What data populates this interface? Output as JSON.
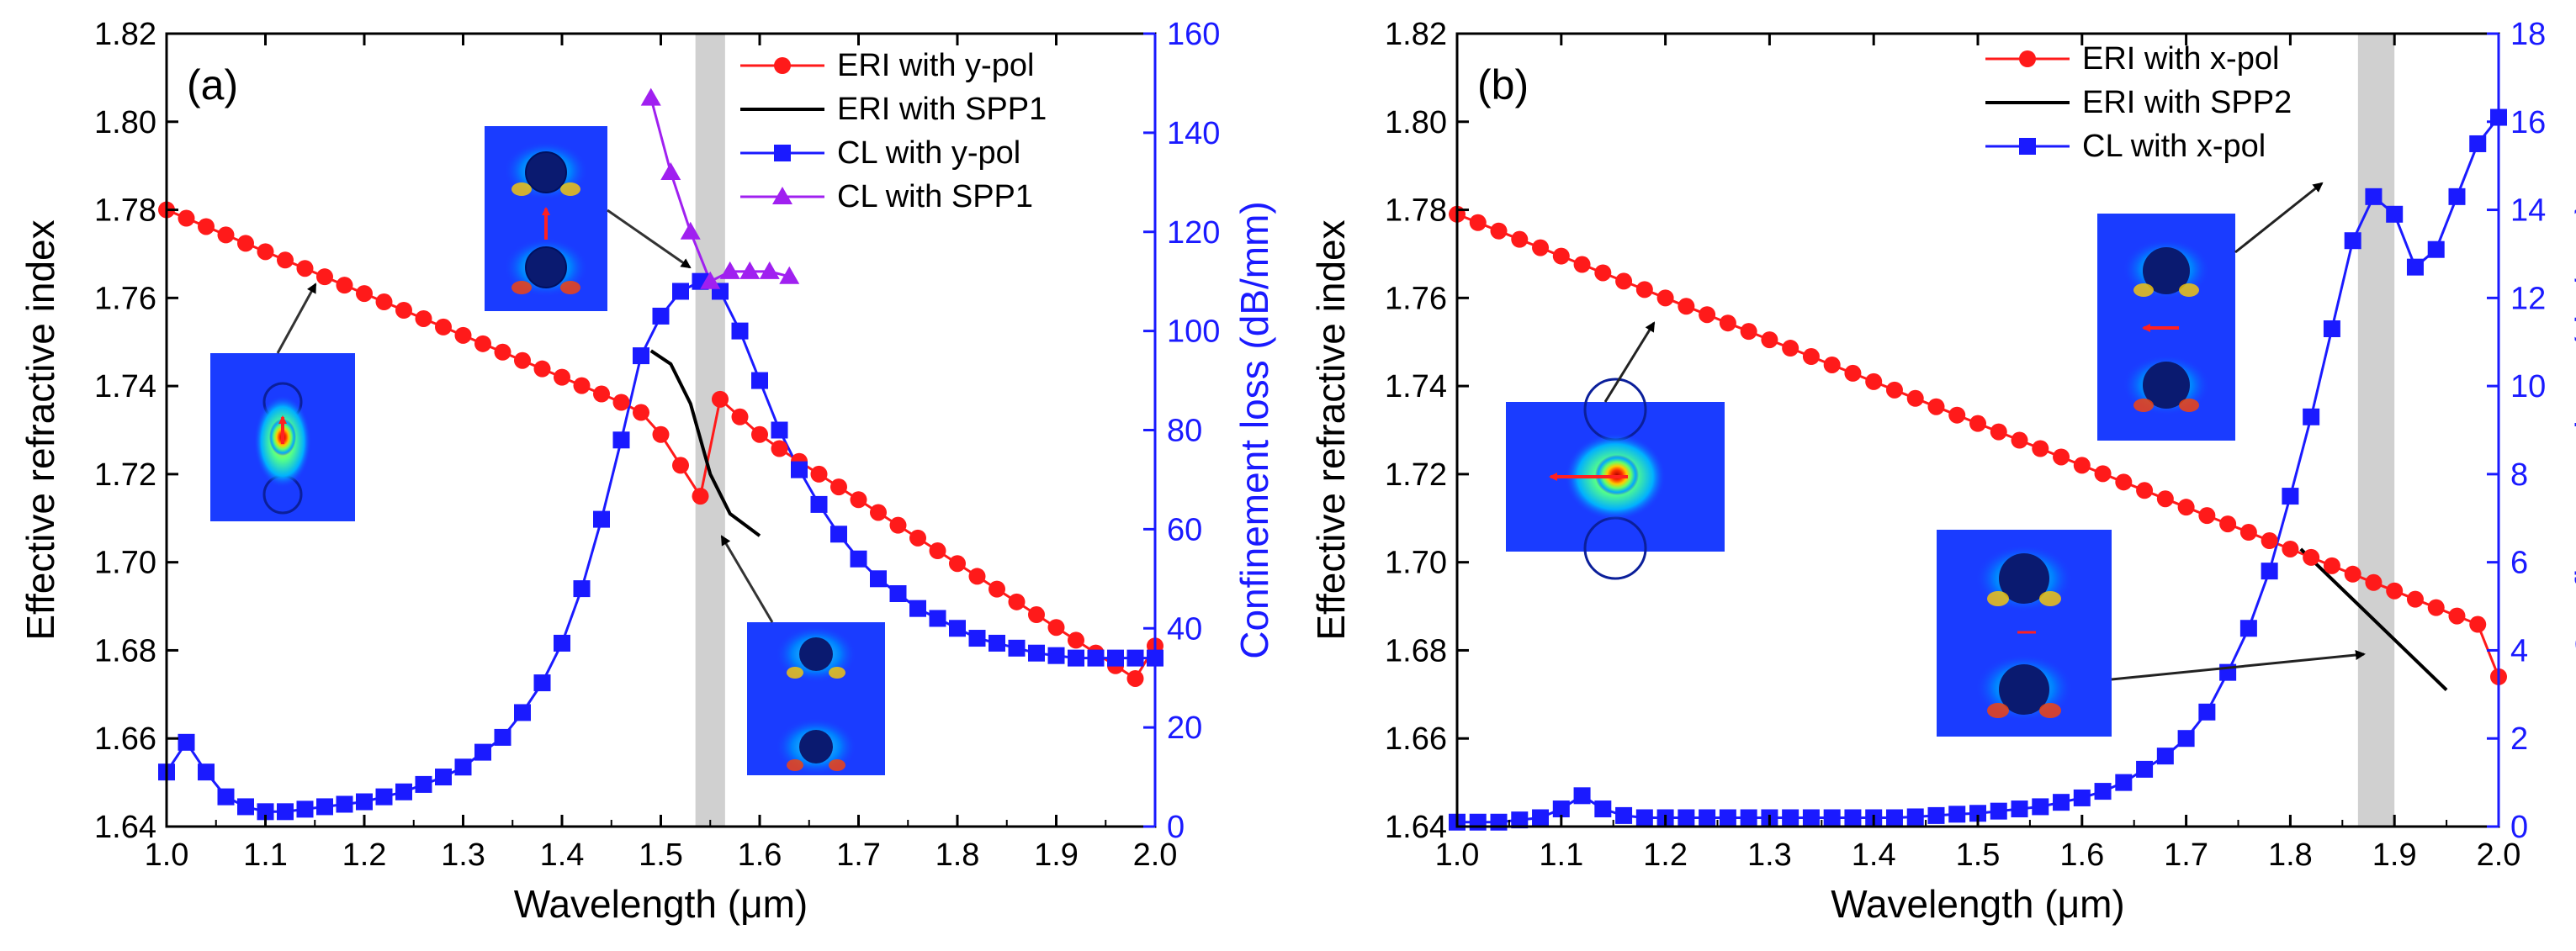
{
  "chart_data": [
    {
      "type": "line",
      "panel_label": "(a)",
      "xlabel": "Wavelength (μm)",
      "ylabel_left": "Effective refractive index",
      "ylabel_right": "Confinement loss (dB/mm)",
      "xlim": [
        1.0,
        2.0
      ],
      "ylim_left": [
        1.64,
        1.82
      ],
      "ylim_right": [
        0,
        160
      ],
      "x_ticks": [
        "1.0",
        "1.1",
        "1.2",
        "1.3",
        "1.4",
        "1.5",
        "1.6",
        "1.7",
        "1.8",
        "1.9",
        "2.0"
      ],
      "y_left_ticks": [
        "1.64",
        "1.66",
        "1.68",
        "1.70",
        "1.72",
        "1.74",
        "1.76",
        "1.78",
        "1.80",
        "1.82"
      ],
      "y_right_ticks": [
        "0",
        "20",
        "40",
        "60",
        "80",
        "100",
        "120",
        "140",
        "160"
      ],
      "highlight_band": [
        1.535,
        1.565
      ],
      "legend": [
        "ERI with y-pol",
        "ERI with SPP1",
        "CL with y-pol",
        "CL with SPP1"
      ],
      "series": [
        {
          "name": "ERI with y-pol",
          "axis": "left",
          "color": "#ff1a1a",
          "marker": "circle",
          "x": [
            1.0,
            1.02,
            1.04,
            1.06,
            1.08,
            1.1,
            1.12,
            1.14,
            1.16,
            1.18,
            1.2,
            1.22,
            1.24,
            1.26,
            1.28,
            1.3,
            1.32,
            1.34,
            1.36,
            1.38,
            1.4,
            1.42,
            1.44,
            1.46,
            1.48,
            1.5,
            1.52,
            1.54,
            1.56,
            1.58,
            1.6,
            1.62,
            1.64,
            1.66,
            1.68,
            1.7,
            1.72,
            1.74,
            1.76,
            1.78,
            1.8,
            1.82,
            1.84,
            1.86,
            1.88,
            1.9,
            1.92,
            1.94,
            1.96,
            1.98,
            2.0
          ],
          "y": [
            1.78,
            1.7781,
            1.7762,
            1.7743,
            1.7724,
            1.7705,
            1.7686,
            1.7667,
            1.7648,
            1.7629,
            1.761,
            1.7591,
            1.7572,
            1.7553,
            1.7534,
            1.7515,
            1.7496,
            1.7477,
            1.7458,
            1.7439,
            1.742,
            1.7401,
            1.7382,
            1.7363,
            1.734,
            1.729,
            1.722,
            1.715,
            1.737,
            1.733,
            1.729,
            1.7258,
            1.7229,
            1.72,
            1.7171,
            1.7142,
            1.7113,
            1.7084,
            1.7055,
            1.7026,
            1.6997,
            1.6968,
            1.6939,
            1.691,
            1.6881,
            1.6852,
            1.6823,
            1.6794,
            1.6765,
            1.6736,
            1.681
          ]
        },
        {
          "name": "ERI with SPP1",
          "axis": "left",
          "color": "#000000",
          "marker": "none",
          "x": [
            1.49,
            1.51,
            1.53,
            1.55,
            1.57,
            1.6
          ],
          "y": [
            1.748,
            1.745,
            1.736,
            1.72,
            1.711,
            1.706
          ]
        },
        {
          "name": "CL with y-pol",
          "axis": "right",
          "color": "#1a1aff",
          "marker": "square",
          "x": [
            1.0,
            1.02,
            1.04,
            1.06,
            1.08,
            1.1,
            1.12,
            1.14,
            1.16,
            1.18,
            1.2,
            1.22,
            1.24,
            1.26,
            1.28,
            1.3,
            1.32,
            1.34,
            1.36,
            1.38,
            1.4,
            1.42,
            1.44,
            1.46,
            1.48,
            1.5,
            1.52,
            1.54,
            1.56,
            1.58,
            1.6,
            1.62,
            1.64,
            1.66,
            1.68,
            1.7,
            1.72,
            1.74,
            1.76,
            1.78,
            1.8,
            1.82,
            1.84,
            1.86,
            1.88,
            1.9,
            1.92,
            1.94,
            1.96,
            1.98,
            2.0
          ],
          "y": [
            11,
            17,
            11,
            6,
            4,
            3,
            3,
            3.5,
            4,
            4.5,
            5,
            6,
            7,
            8.5,
            10,
            12,
            15,
            18,
            23,
            29,
            37,
            48,
            62,
            78,
            95,
            103,
            108,
            110,
            108,
            100,
            90,
            80,
            72,
            65,
            59,
            54,
            50,
            47,
            44,
            42,
            40,
            38,
            37,
            36,
            35,
            34.5,
            34,
            34,
            34,
            34,
            34
          ]
        },
        {
          "name": "CL with SPP1",
          "axis": "right",
          "color": "#a020f0",
          "marker": "triangle",
          "x": [
            1.49,
            1.51,
            1.53,
            1.55,
            1.57,
            1.59,
            1.61,
            1.63
          ],
          "y": [
            147,
            132,
            120,
            110,
            112,
            112,
            112,
            111
          ]
        }
      ],
      "annotations": [
        "fundamental y-pol mode field",
        "SPP1 mode field (coupling)",
        "SPP1 mode field"
      ]
    },
    {
      "type": "line",
      "panel_label": "(b)",
      "xlabel": "Wavelength (μm)",
      "ylabel_left": "Effective refractive index",
      "ylabel_right": "Confinement loss (dB/mm)",
      "xlim": [
        1.0,
        2.0
      ],
      "ylim_left": [
        1.64,
        1.82
      ],
      "ylim_right": [
        0,
        18
      ],
      "x_ticks": [
        "1.0",
        "1.1",
        "1.2",
        "1.3",
        "1.4",
        "1.5",
        "1.6",
        "1.7",
        "1.8",
        "1.9",
        "2.0"
      ],
      "y_left_ticks": [
        "1.64",
        "1.66",
        "1.68",
        "1.70",
        "1.72",
        "1.74",
        "1.76",
        "1.78",
        "1.80",
        "1.82"
      ],
      "y_right_ticks": [
        "0",
        "2",
        "4",
        "6",
        "8",
        "10",
        "12",
        "14",
        "16",
        "18"
      ],
      "highlight_band": [
        1.865,
        1.9
      ],
      "legend": [
        "ERI with x-pol",
        "ERI with SPP2",
        "CL with x-pol"
      ],
      "series": [
        {
          "name": "ERI with x-pol",
          "axis": "left",
          "color": "#ff1a1a",
          "marker": "circle",
          "x": [
            1.0,
            1.02,
            1.04,
            1.06,
            1.08,
            1.1,
            1.12,
            1.14,
            1.16,
            1.18,
            1.2,
            1.22,
            1.24,
            1.26,
            1.28,
            1.3,
            1.32,
            1.34,
            1.36,
            1.38,
            1.4,
            1.42,
            1.44,
            1.46,
            1.48,
            1.5,
            1.52,
            1.54,
            1.56,
            1.58,
            1.6,
            1.62,
            1.64,
            1.66,
            1.68,
            1.7,
            1.72,
            1.74,
            1.76,
            1.78,
            1.8,
            1.82,
            1.84,
            1.86,
            1.88,
            1.9,
            1.92,
            1.94,
            1.96,
            1.98,
            2.0
          ],
          "y": [
            1.779,
            1.7771,
            1.7752,
            1.7733,
            1.7714,
            1.7695,
            1.7676,
            1.7657,
            1.7638,
            1.7619,
            1.76,
            1.7581,
            1.7562,
            1.7543,
            1.7524,
            1.7505,
            1.7486,
            1.7467,
            1.7448,
            1.7429,
            1.741,
            1.7391,
            1.7372,
            1.7353,
            1.7334,
            1.7315,
            1.7296,
            1.7277,
            1.7258,
            1.7239,
            1.722,
            1.7201,
            1.7182,
            1.7163,
            1.7144,
            1.7125,
            1.7106,
            1.7087,
            1.7068,
            1.7049,
            1.703,
            1.7011,
            1.6992,
            1.6973,
            1.6954,
            1.6935,
            1.6916,
            1.6897,
            1.6878,
            1.6859,
            1.674
          ]
        },
        {
          "name": "ERI with SPP2",
          "axis": "left",
          "color": "#000000",
          "marker": "none",
          "x": [
            1.81,
            1.95
          ],
          "y": [
            1.703,
            1.671
          ]
        },
        {
          "name": "CL with x-pol",
          "axis": "right",
          "color": "#1a1aff",
          "marker": "square",
          "x": [
            1.0,
            1.02,
            1.04,
            1.06,
            1.08,
            1.1,
            1.12,
            1.14,
            1.16,
            1.18,
            1.2,
            1.22,
            1.24,
            1.26,
            1.28,
            1.3,
            1.32,
            1.34,
            1.36,
            1.38,
            1.4,
            1.42,
            1.44,
            1.46,
            1.48,
            1.5,
            1.52,
            1.54,
            1.56,
            1.58,
            1.6,
            1.62,
            1.64,
            1.66,
            1.68,
            1.7,
            1.72,
            1.74,
            1.76,
            1.78,
            1.8,
            1.82,
            1.84,
            1.86,
            1.88,
            1.9,
            1.92,
            1.94,
            1.96,
            1.98,
            2.0
          ],
          "y": [
            0.1,
            0.1,
            0.1,
            0.15,
            0.2,
            0.4,
            0.7,
            0.4,
            0.25,
            0.2,
            0.2,
            0.2,
            0.2,
            0.2,
            0.2,
            0.2,
            0.2,
            0.2,
            0.2,
            0.2,
            0.2,
            0.2,
            0.22,
            0.25,
            0.28,
            0.3,
            0.35,
            0.4,
            0.45,
            0.55,
            0.65,
            0.8,
            1.0,
            1.3,
            1.6,
            2.0,
            2.6,
            3.5,
            4.5,
            5.8,
            7.5,
            9.3,
            11.3,
            13.3,
            14.3,
            13.9,
            12.7,
            13.1,
            14.3,
            15.5,
            16.1
          ]
        }
      ],
      "annotations": [
        "fundamental x-pol mode field",
        "SPP2 mode field (coupling)",
        "x-pol mode field"
      ]
    }
  ]
}
